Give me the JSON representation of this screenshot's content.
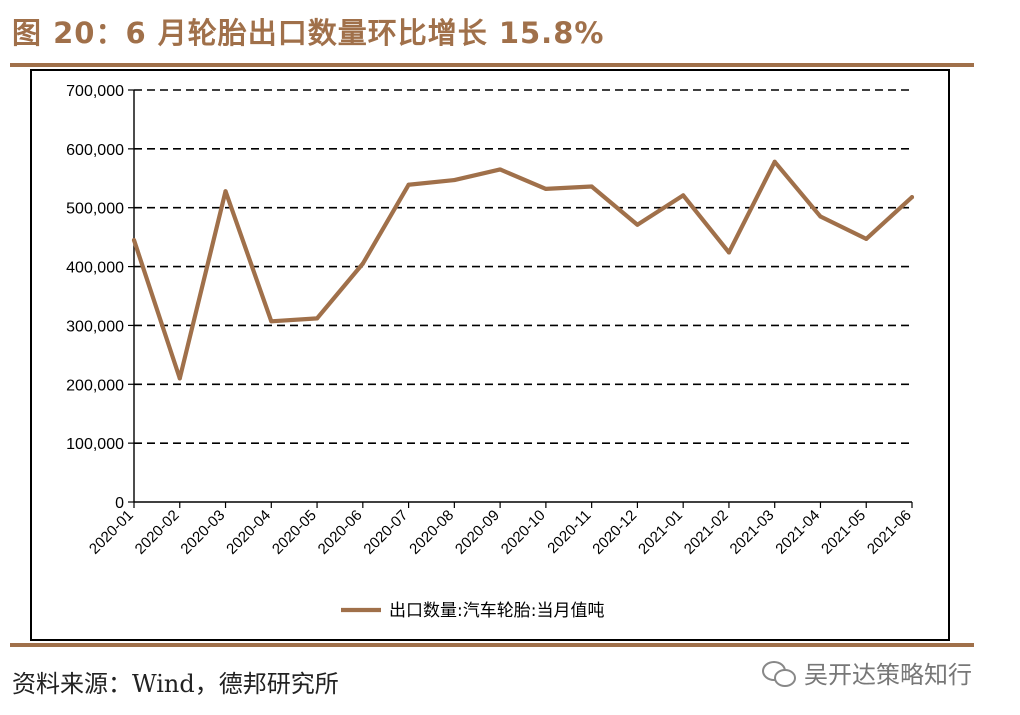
{
  "title": "图 20：6 月轮胎出口数量环比增长 15.8%",
  "source": "资料来源：Wind，德邦研究所",
  "watermark": "吴开达策略知行",
  "colors": {
    "line": "#a0704a",
    "accent": "#a0704a"
  },
  "chart_data": {
    "type": "line",
    "categories": [
      "2020-01",
      "2020-02",
      "2020-03",
      "2020-04",
      "2020-05",
      "2020-06",
      "2020-07",
      "2020-08",
      "2020-09",
      "2020-10",
      "2020-11",
      "2020-12",
      "2021-01",
      "2021-02",
      "2021-03",
      "2021-04",
      "2021-05",
      "2021-06"
    ],
    "series": [
      {
        "name": "出口数量:汽车轮胎:当月值吨",
        "values": [
          445000,
          210000,
          528000,
          307000,
          312000,
          405000,
          539000,
          547000,
          565000,
          532000,
          536000,
          471000,
          521000,
          424000,
          578000,
          485000,
          447000,
          518000
        ]
      }
    ],
    "yticks": [
      "0",
      "100,000",
      "200,000",
      "300,000",
      "400,000",
      "500,000",
      "600,000",
      "700,000"
    ],
    "ylim": [
      0,
      700000
    ],
    "grid": true,
    "legend_position": "bottom-center"
  }
}
